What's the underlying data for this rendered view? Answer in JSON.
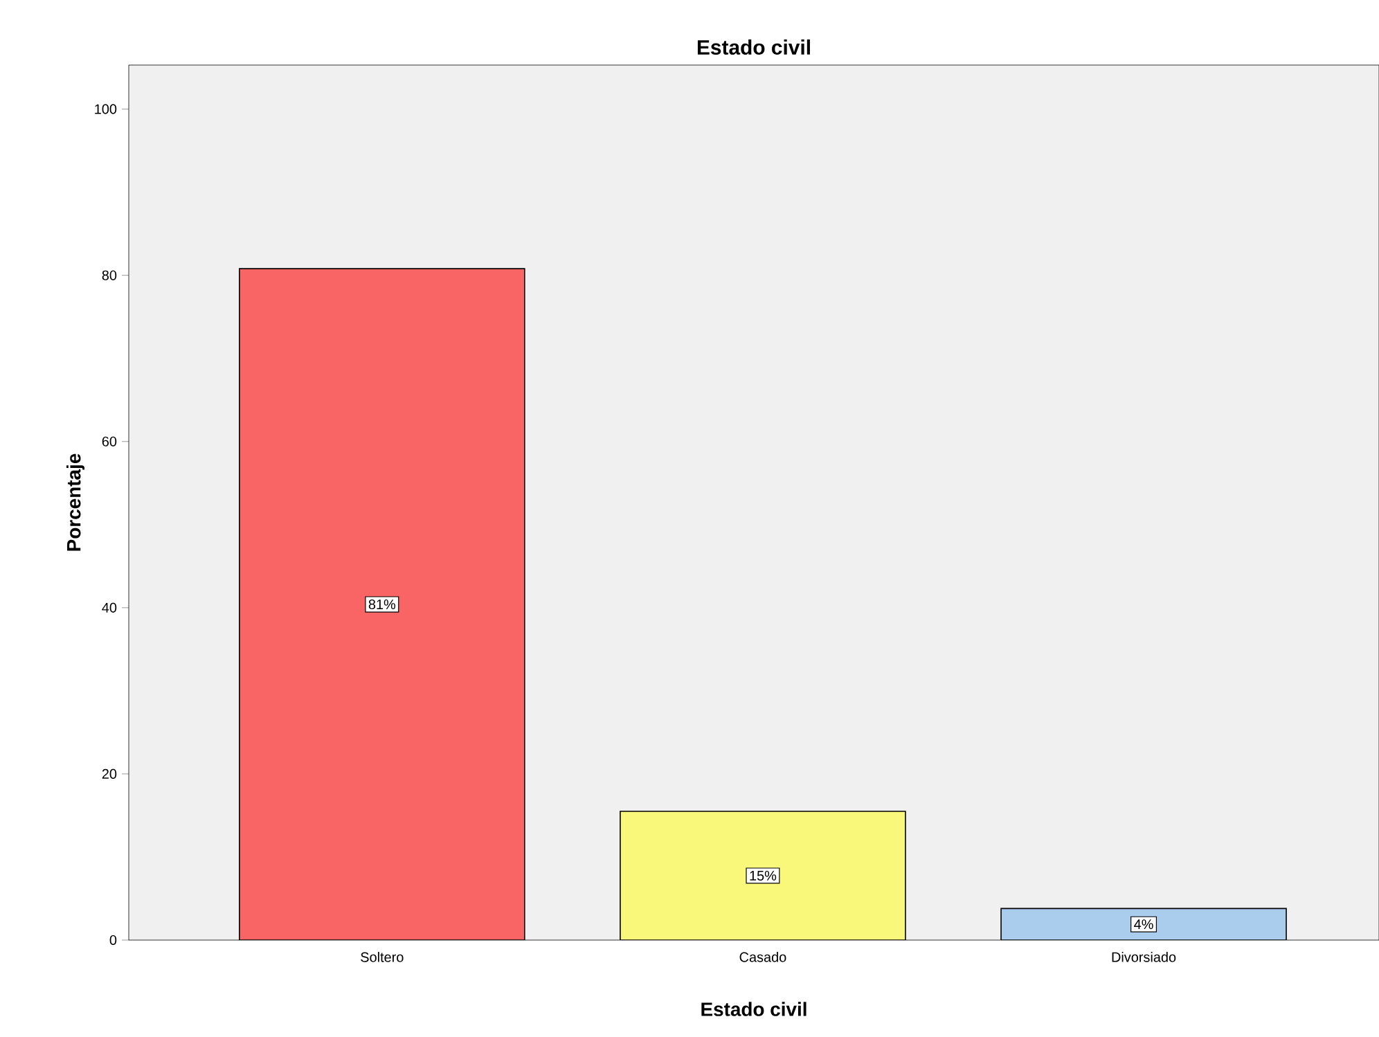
{
  "chart_data": {
    "type": "bar",
    "title": "Estado civil",
    "xlabel": "Estado civil",
    "ylabel": "Porcentaje",
    "categories": [
      "Soltero",
      "Casado",
      "Divorsiado"
    ],
    "values": [
      80.8,
      15.5,
      3.8
    ],
    "colors": [
      "#f96464",
      "#f9f87a",
      "#aacdee"
    ],
    "value_labels": [
      "81%",
      "15%",
      "4%"
    ],
    "ylim": [
      0,
      105.3
    ],
    "yticks": [
      0,
      20,
      40,
      60,
      80,
      100
    ],
    "grid": false
  }
}
